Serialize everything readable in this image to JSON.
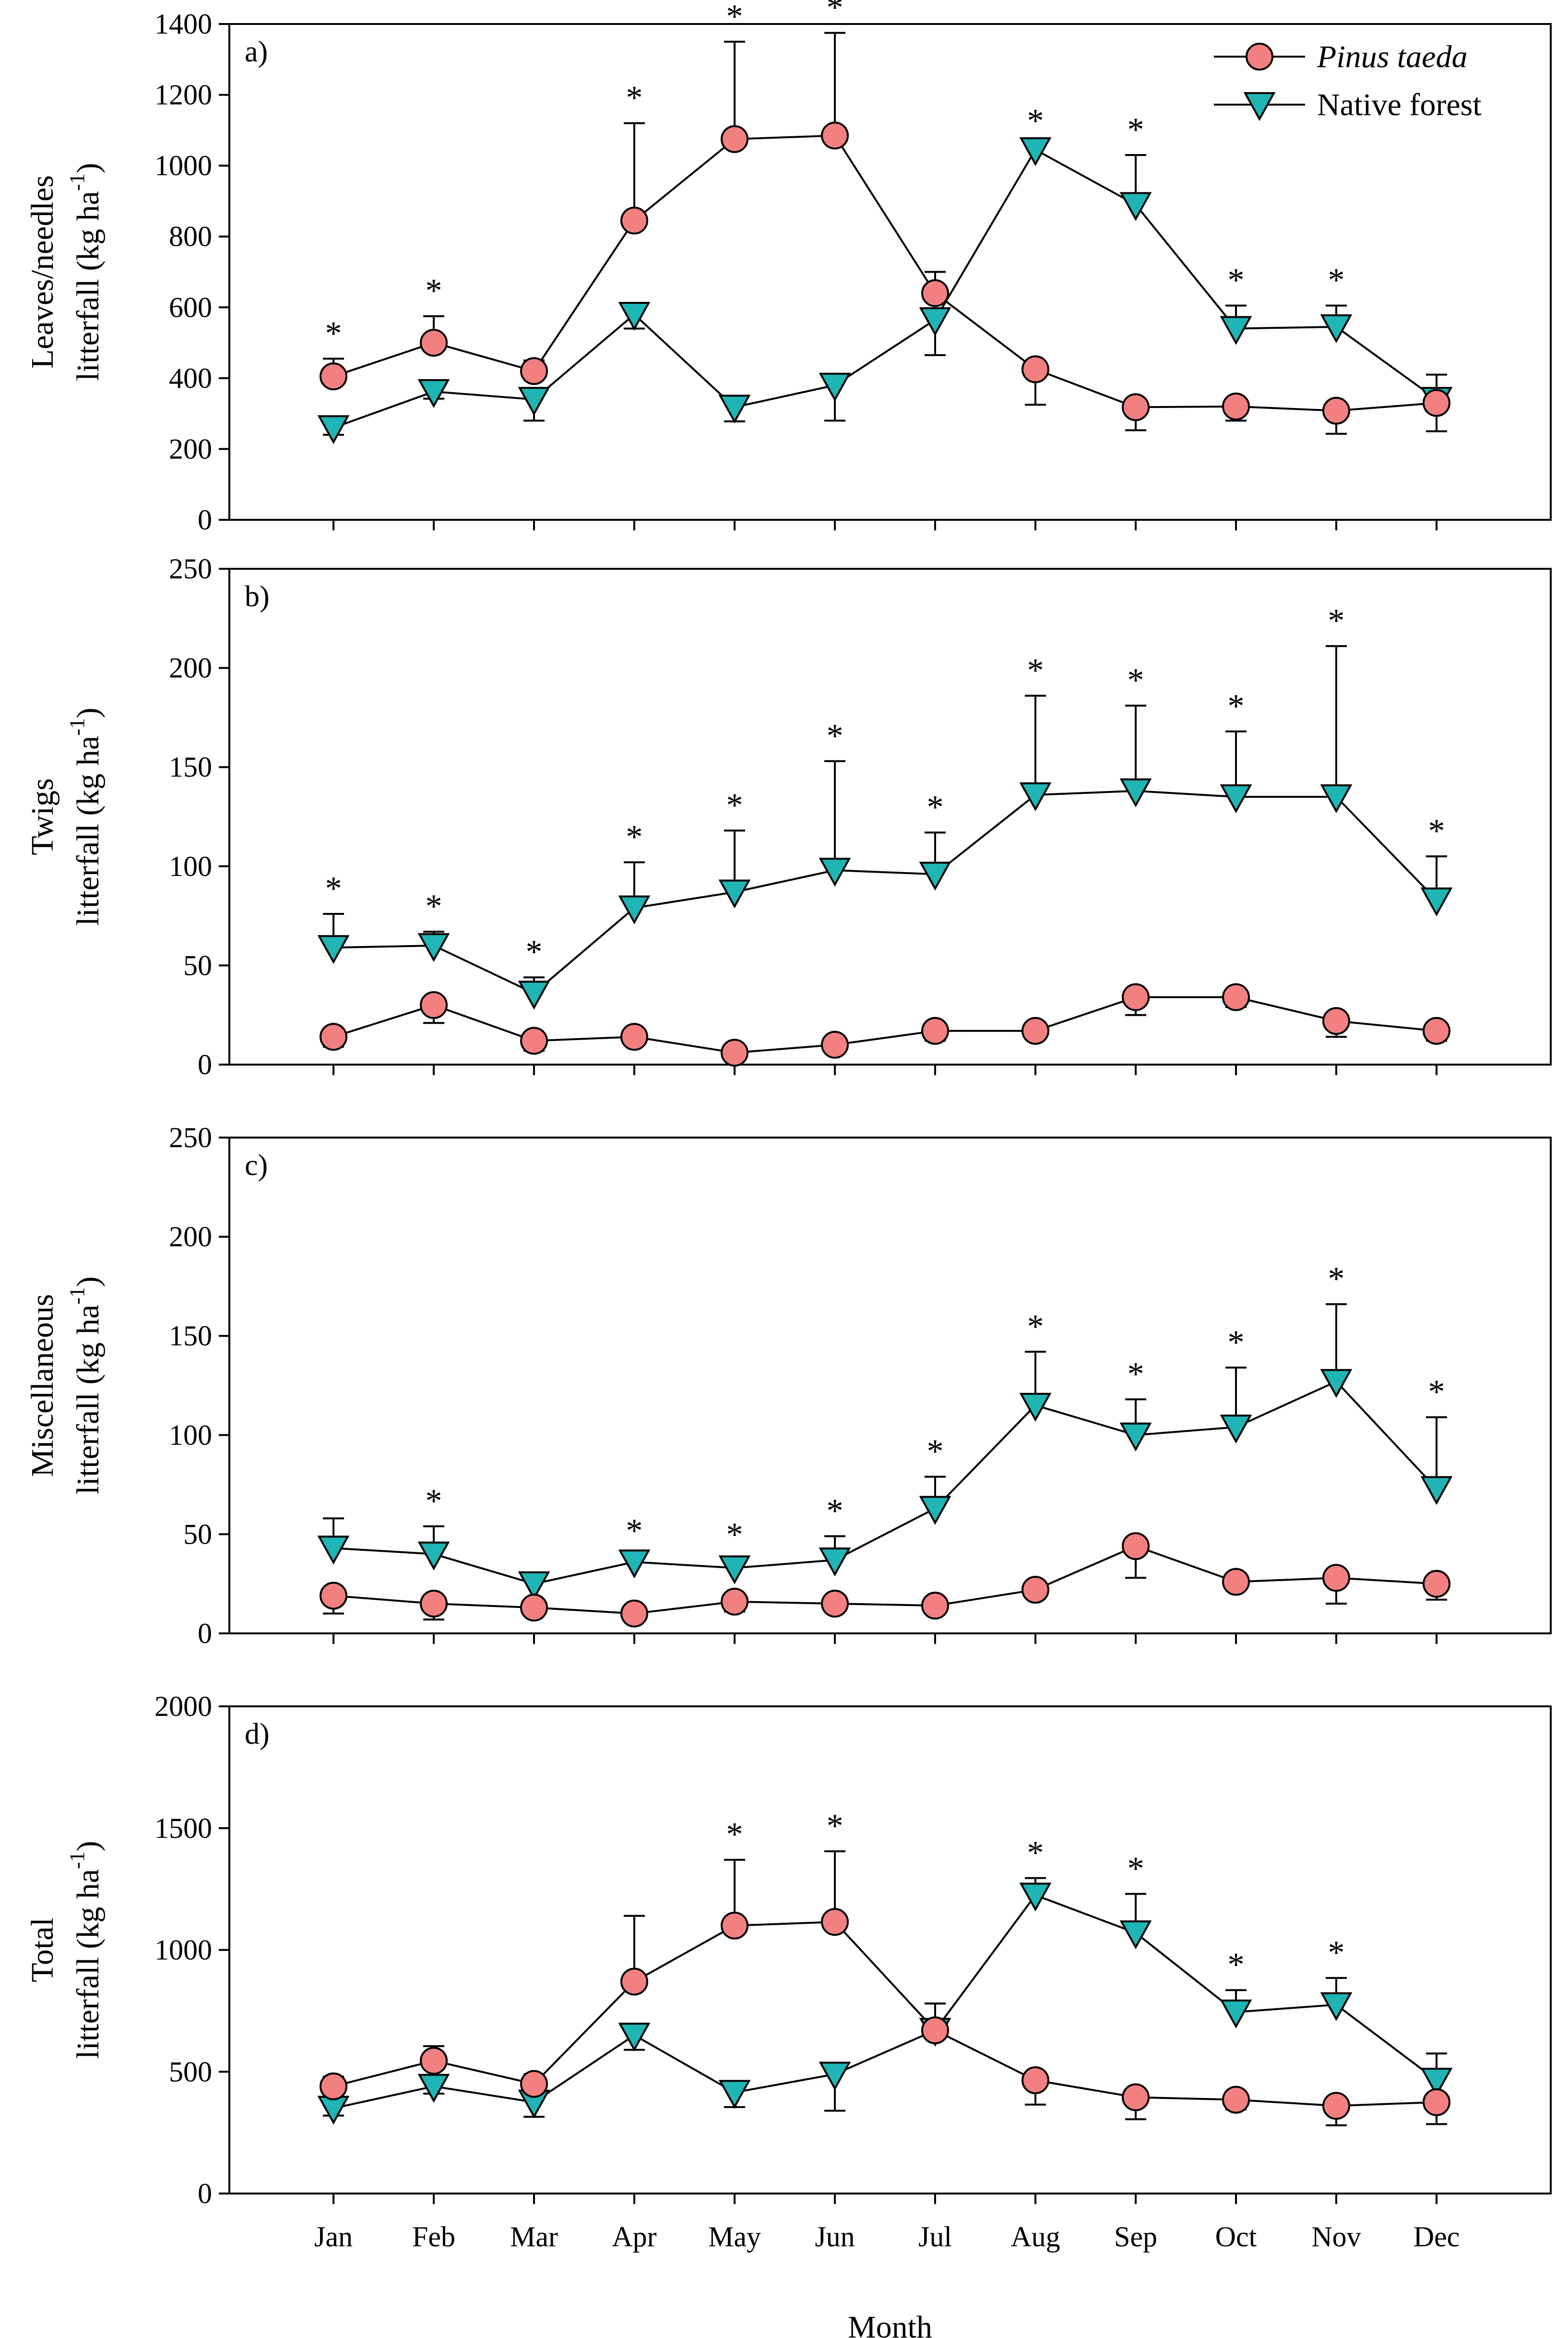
{
  "chart_data": [
    {
      "type": "line",
      "panel_label": "a)",
      "ylabel_lines": [
        "Leaves/needles",
        "litterfall (kg ha",
        "-1",
        ")"
      ],
      "xlabel": "",
      "ylim": [
        0,
        1400
      ],
      "yticks": [
        0,
        200,
        400,
        600,
        800,
        1000,
        1200,
        1400
      ],
      "categories": [
        "Jan",
        "Feb",
        "Mar",
        "Apr",
        "May",
        "Jun",
        "Jul",
        "Aug",
        "Sep",
        "Oct",
        "Nov",
        "Dec"
      ],
      "series": [
        {
          "name": "Pinus taeda",
          "values": [
            405,
            500,
            420,
            845,
            1075,
            1085,
            640,
            425,
            318,
            320,
            308,
            330
          ],
          "err": [
            50,
            75,
            30,
            275,
            275,
            290,
            60,
            100,
            65,
            40,
            65,
            80
          ]
        },
        {
          "name": "Native forest",
          "values": [
            260,
            362,
            340,
            580,
            318,
            380,
            565,
            1045,
            890,
            540,
            545,
            340
          ],
          "err": [
            20,
            20,
            60,
            40,
            40,
            100,
            100,
            10,
            140,
            65,
            60,
            70
          ]
        }
      ],
      "significant": [
        true,
        true,
        false,
        true,
        true,
        true,
        false,
        true,
        true,
        true,
        true,
        false
      ]
    },
    {
      "type": "line",
      "panel_label": "b)",
      "ylabel_lines": [
        "Twigs",
        "litterfall (kg ha",
        "-1",
        ")"
      ],
      "xlabel": "",
      "ylim": [
        0,
        250
      ],
      "yticks": [
        0,
        50,
        100,
        150,
        200,
        250
      ],
      "categories": [
        "Jan",
        "Feb",
        "Mar",
        "Apr",
        "May",
        "Jun",
        "Jul",
        "Aug",
        "Sep",
        "Oct",
        "Nov",
        "Dec"
      ],
      "series": [
        {
          "name": "Pinus taeda",
          "values": [
            14,
            30,
            12,
            14,
            6,
            10,
            17,
            17,
            34,
            34,
            22,
            17
          ],
          "err": [
            5,
            9,
            5,
            4,
            2,
            3,
            5,
            4,
            9,
            5,
            8,
            5
          ]
        },
        {
          "name": "Native forest",
          "values": [
            59,
            60,
            36,
            79,
            87,
            98,
            96,
            136,
            138,
            135,
            135,
            83
          ],
          "err": [
            17,
            7,
            8,
            23,
            31,
            55,
            21,
            50,
            43,
            33,
            76,
            22
          ]
        }
      ],
      "significant": [
        true,
        true,
        true,
        true,
        true,
        true,
        true,
        true,
        true,
        true,
        true,
        true
      ]
    },
    {
      "type": "line",
      "panel_label": "c)",
      "ylabel_lines": [
        "Miscellaneous",
        "litterfall (kg ha",
        "-1",
        ")"
      ],
      "xlabel": "",
      "ylim": [
        0,
        250
      ],
      "yticks": [
        0,
        50,
        100,
        150,
        200,
        250
      ],
      "categories": [
        "Jan",
        "Feb",
        "Mar",
        "Apr",
        "May",
        "Jun",
        "Jul",
        "Aug",
        "Sep",
        "Oct",
        "Nov",
        "Dec"
      ],
      "series": [
        {
          "name": "Pinus taeda",
          "values": [
            19,
            15,
            13,
            10,
            16,
            15,
            14,
            22,
            44,
            26,
            28,
            25
          ],
          "err": [
            9,
            8,
            4,
            2,
            5,
            4,
            4,
            3,
            16,
            3,
            13,
            8
          ]
        },
        {
          "name": "Native forest",
          "values": [
            43,
            40,
            25,
            36,
            33,
            37,
            63,
            115,
            100,
            104,
            127,
            73
          ],
          "err": [
            15,
            14,
            5,
            3,
            4,
            12,
            16,
            27,
            18,
            30,
            39,
            36
          ]
        }
      ],
      "significant": [
        false,
        true,
        false,
        true,
        true,
        true,
        true,
        true,
        true,
        true,
        true,
        true
      ]
    },
    {
      "type": "line",
      "panel_label": "d)",
      "ylabel_lines": [
        "Total",
        "litterfall (kg ha",
        "-1",
        ")"
      ],
      "xlabel": "Month",
      "ylim": [
        0,
        2000
      ],
      "yticks": [
        0,
        500,
        1000,
        1500,
        2000
      ],
      "categories": [
        "Jan",
        "Feb",
        "Mar",
        "Apr",
        "May",
        "Jun",
        "Jul",
        "Aug",
        "Sep",
        "Oct",
        "Nov",
        "Dec"
      ],
      "series": [
        {
          "name": "Pinus taeda",
          "values": [
            440,
            545,
            450,
            870,
            1100,
            1115,
            670,
            465,
            395,
            385,
            360,
            375
          ],
          "err": [
            40,
            60,
            40,
            270,
            270,
            290,
            110,
            100,
            90,
            40,
            80,
            90
          ]
        },
        {
          "name": "Native forest",
          "values": [
            350,
            440,
            375,
            650,
            415,
            490,
            670,
            1225,
            1070,
            745,
            775,
            465
          ],
          "err": [
            30,
            30,
            60,
            60,
            60,
            150,
            110,
            70,
            160,
            90,
            110,
            110
          ]
        }
      ],
      "significant": [
        false,
        false,
        false,
        false,
        true,
        true,
        false,
        true,
        true,
        true,
        true,
        false
      ]
    }
  ],
  "legend": {
    "placement": "top-right",
    "entries": [
      {
        "label": "Pinus taeda",
        "italic": true
      },
      {
        "label": "Native forest",
        "italic": false
      }
    ]
  },
  "significance_marker": "*",
  "colors": {
    "pinus": "#F28080",
    "native": "#1FB5B5"
  }
}
